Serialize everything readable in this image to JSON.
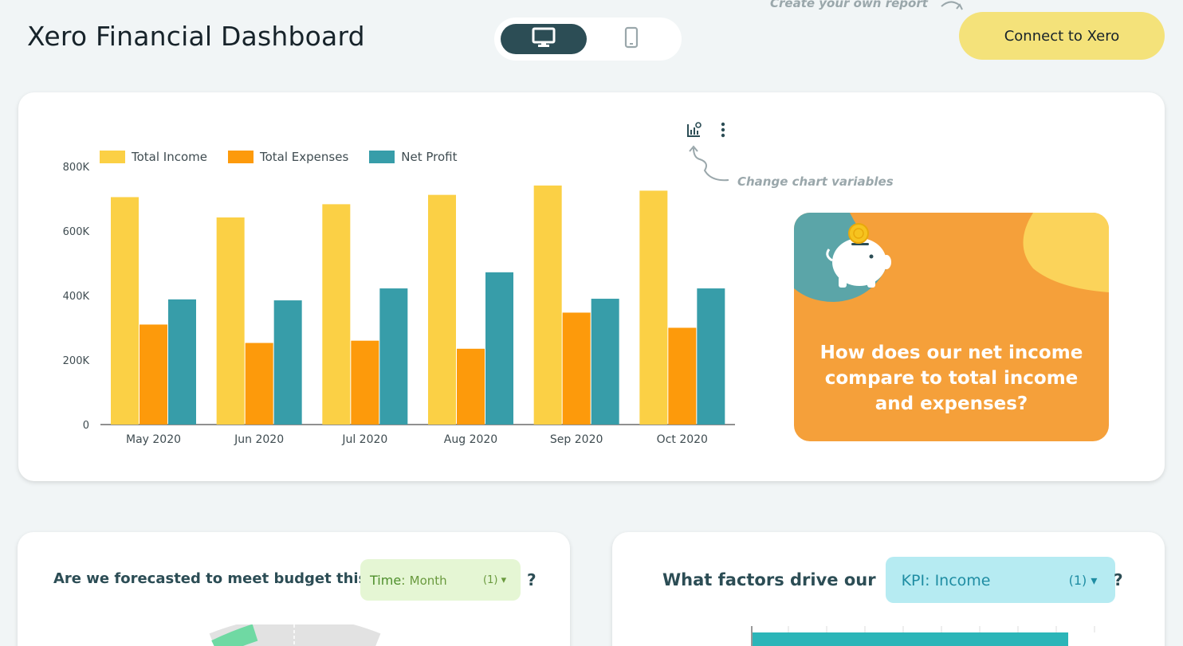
{
  "header": {
    "title": "Xero Financial Dashboard",
    "promo_hint": "Create your own report",
    "connect_label": "Connect to Xero"
  },
  "device_toggle": {
    "active": "desktop"
  },
  "main_card": {
    "change_hint": "Change chart variables",
    "insight_text": "How does our net income compare to total income and expenses?"
  },
  "chart_data": {
    "type": "bar",
    "categories": [
      "May 2020",
      "Jun 2020",
      "Jul 2020",
      "Aug 2020",
      "Sep 2020",
      "Oct 2020"
    ],
    "series": [
      {
        "name": "Total Income",
        "color": "#fbd045",
        "values": [
          705000,
          642000,
          683000,
          712000,
          741000,
          725000
        ]
      },
      {
        "name": "Total Expenses",
        "color": "#fd9a0b",
        "values": [
          310000,
          253000,
          260000,
          235000,
          347000,
          300000
        ]
      },
      {
        "name": "Net Profit",
        "color": "#379da9",
        "values": [
          388000,
          385000,
          422000,
          472000,
          390000,
          422000
        ]
      }
    ],
    "y_ticks": [
      "0",
      "200K",
      "400K",
      "600K",
      "800K"
    ],
    "ylim": [
      0,
      800000
    ],
    "legend_position": "top-left",
    "grid": false
  },
  "budget_card": {
    "question": "Are we forecasted to meet budget this",
    "chip_key": "Time",
    "chip_value": "Month",
    "chip_count": "(1)",
    "question_mark": "?"
  },
  "factors_card": {
    "question": "What factors drive our",
    "chip_key": "KPI",
    "chip_value": "Income",
    "chip_count": "(1)",
    "question_mark": "?"
  },
  "colors": {
    "accent_dark": "#2c4d55",
    "connect_button": "#f4e27a",
    "insight_orange": "#f5a03a",
    "time_chip": "#e5f6d4",
    "kpi_chip": "#b6ebf2"
  }
}
